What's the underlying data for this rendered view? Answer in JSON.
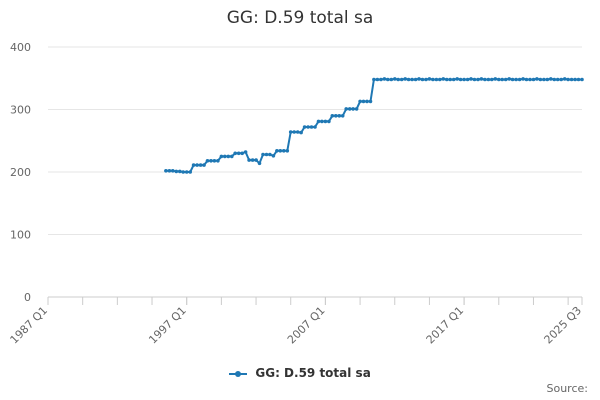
{
  "chart_data": {
    "type": "line",
    "title": "GG: D.59 total sa",
    "x_tick_labels": [
      "1987 Q1",
      "1997 Q1",
      "2007 Q1",
      "2017 Q1",
      "2025 Q3"
    ],
    "y_tick_labels": [
      "0",
      "100",
      "200",
      "300",
      "400"
    ],
    "ylim": [
      0,
      400
    ],
    "grid": true,
    "legend_position": "bottom",
    "series": [
      {
        "name": "GG: D.59 total sa",
        "color": "#1f78b4",
        "points": [
          [
            "1995 Q3",
            202
          ],
          [
            "1995 Q4",
            202
          ],
          [
            "1996 Q1",
            202
          ],
          [
            "1996 Q2",
            201
          ],
          [
            "1996 Q3",
            201
          ],
          [
            "1996 Q4",
            200
          ],
          [
            "1997 Q1",
            200
          ],
          [
            "1997 Q2",
            200
          ],
          [
            "1997 Q3",
            211
          ],
          [
            "1997 Q4",
            211
          ],
          [
            "1998 Q1",
            211
          ],
          [
            "1998 Q2",
            211
          ],
          [
            "1998 Q3",
            218
          ],
          [
            "1998 Q4",
            218
          ],
          [
            "1999 Q1",
            218
          ],
          [
            "1999 Q2",
            218
          ],
          [
            "1999 Q3",
            225
          ],
          [
            "1999 Q4",
            225
          ],
          [
            "2000 Q1",
            225
          ],
          [
            "2000 Q2",
            225
          ],
          [
            "2000 Q3",
            230
          ],
          [
            "2000 Q4",
            230
          ],
          [
            "2001 Q1",
            230
          ],
          [
            "2001 Q2",
            232
          ],
          [
            "2001 Q3",
            219
          ],
          [
            "2001 Q4",
            219
          ],
          [
            "2002 Q1",
            219
          ],
          [
            "2002 Q2",
            214
          ],
          [
            "2002 Q3",
            228
          ],
          [
            "2002 Q4",
            228
          ],
          [
            "2003 Q1",
            228
          ],
          [
            "2003 Q2",
            226
          ],
          [
            "2003 Q3",
            234
          ],
          [
            "2003 Q4",
            234
          ],
          [
            "2004 Q1",
            234
          ],
          [
            "2004 Q2",
            234
          ],
          [
            "2004 Q3",
            264
          ],
          [
            "2004 Q4",
            264
          ],
          [
            "2005 Q1",
            264
          ],
          [
            "2005 Q2",
            263
          ],
          [
            "2005 Q3",
            272
          ],
          [
            "2005 Q4",
            272
          ],
          [
            "2006 Q1",
            272
          ],
          [
            "2006 Q2",
            272
          ],
          [
            "2006 Q3",
            281
          ],
          [
            "2006 Q4",
            281
          ],
          [
            "2007 Q1",
            281
          ],
          [
            "2007 Q2",
            281
          ],
          [
            "2007 Q3",
            290
          ],
          [
            "2007 Q4",
            290
          ],
          [
            "2008 Q1",
            290
          ],
          [
            "2008 Q2",
            290
          ],
          [
            "2008 Q3",
            301
          ],
          [
            "2008 Q4",
            301
          ],
          [
            "2009 Q1",
            301
          ],
          [
            "2009 Q2",
            301
          ],
          [
            "2009 Q3",
            313
          ],
          [
            "2009 Q4",
            313
          ],
          [
            "2010 Q1",
            313
          ],
          [
            "2010 Q2",
            313
          ],
          [
            "2010 Q3",
            348
          ],
          [
            "2010 Q4",
            348
          ],
          [
            "2011 Q1",
            348
          ],
          [
            "2011 Q2",
            349
          ],
          [
            "2011 Q3",
            348
          ],
          [
            "2011 Q4",
            348
          ],
          [
            "2012 Q1",
            349
          ],
          [
            "2012 Q2",
            348
          ],
          [
            "2012 Q3",
            348
          ],
          [
            "2012 Q4",
            349
          ],
          [
            "2013 Q1",
            348
          ],
          [
            "2013 Q2",
            348
          ],
          [
            "2013 Q3",
            348
          ],
          [
            "2013 Q4",
            349
          ],
          [
            "2014 Q1",
            348
          ],
          [
            "2014 Q2",
            348
          ],
          [
            "2014 Q3",
            349
          ],
          [
            "2014 Q4",
            348
          ],
          [
            "2015 Q1",
            348
          ],
          [
            "2015 Q2",
            348
          ],
          [
            "2015 Q3",
            349
          ],
          [
            "2015 Q4",
            348
          ],
          [
            "2016 Q1",
            348
          ],
          [
            "2016 Q2",
            348
          ],
          [
            "2016 Q3",
            349
          ],
          [
            "2016 Q4",
            348
          ],
          [
            "2017 Q1",
            348
          ],
          [
            "2017 Q2",
            348
          ],
          [
            "2017 Q3",
            349
          ],
          [
            "2017 Q4",
            348
          ],
          [
            "2018 Q1",
            348
          ],
          [
            "2018 Q2",
            349
          ],
          [
            "2018 Q3",
            348
          ],
          [
            "2018 Q4",
            348
          ],
          [
            "2019 Q1",
            348
          ],
          [
            "2019 Q2",
            349
          ],
          [
            "2019 Q3",
            348
          ],
          [
            "2019 Q4",
            348
          ],
          [
            "2020 Q1",
            348
          ],
          [
            "2020 Q2",
            349
          ],
          [
            "2020 Q3",
            348
          ],
          [
            "2020 Q4",
            348
          ],
          [
            "2021 Q1",
            348
          ],
          [
            "2021 Q2",
            349
          ],
          [
            "2021 Q3",
            348
          ],
          [
            "2021 Q4",
            348
          ],
          [
            "2022 Q1",
            348
          ],
          [
            "2022 Q2",
            349
          ],
          [
            "2022 Q3",
            348
          ],
          [
            "2022 Q4",
            348
          ],
          [
            "2023 Q1",
            348
          ],
          [
            "2023 Q2",
            349
          ],
          [
            "2023 Q3",
            348
          ],
          [
            "2023 Q4",
            348
          ],
          [
            "2024 Q1",
            348
          ],
          [
            "2024 Q2",
            349
          ],
          [
            "2024 Q3",
            348
          ],
          [
            "2024 Q4",
            348
          ],
          [
            "2025 Q1",
            348
          ],
          [
            "2025 Q2",
            348
          ],
          [
            "2025 Q3",
            348
          ]
        ]
      }
    ]
  },
  "legend": {
    "label": "GG: D.59 total sa"
  },
  "footer": {
    "source_label": "Source:"
  }
}
